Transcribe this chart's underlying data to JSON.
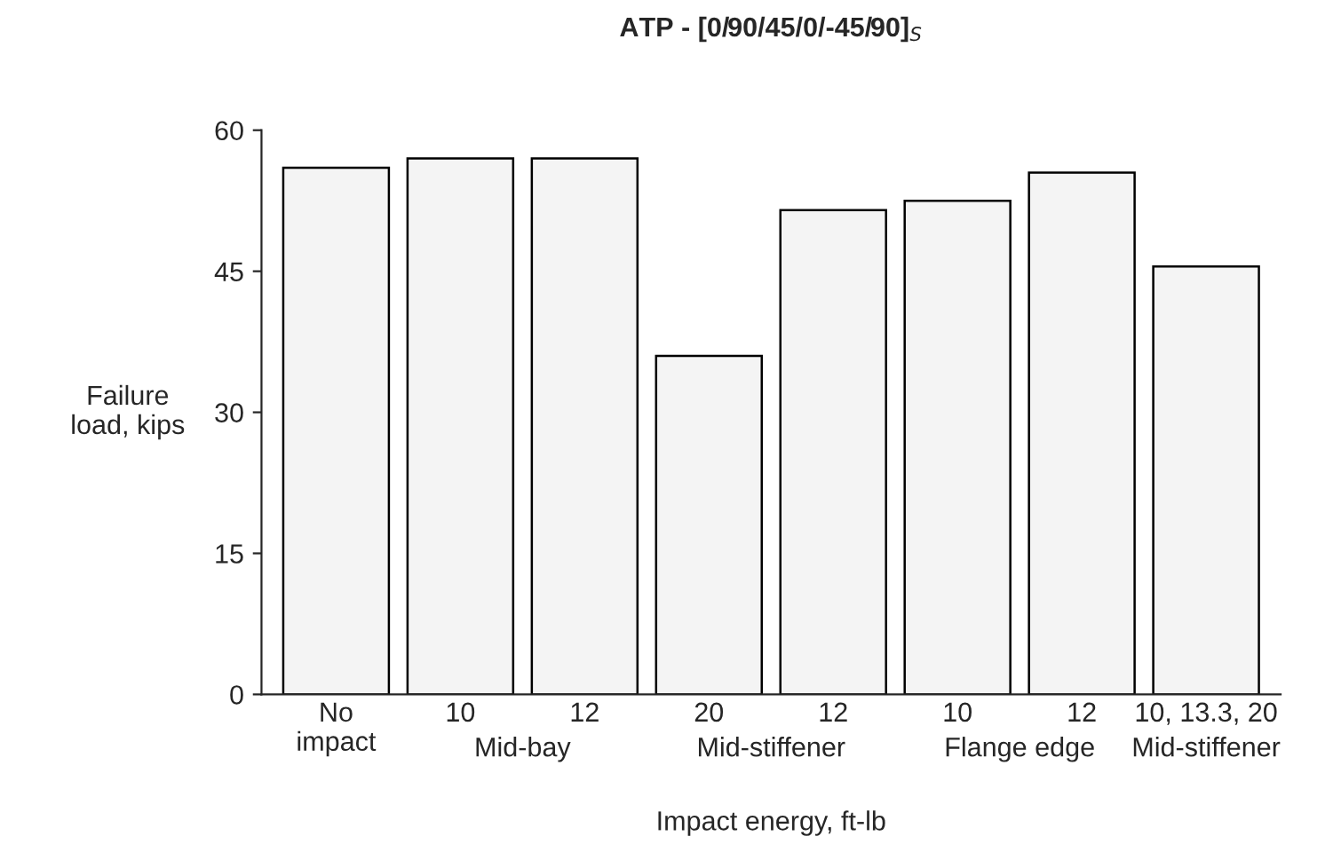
{
  "chart_data": {
    "type": "bar",
    "title": "ATP - [0/90/45/0/-45/90]$_{S}$",
    "xlabel": "Impact energy, ft-lb",
    "ylabel": "Failure\nload, kips",
    "categories": [
      "No\nimpact",
      "10",
      "12",
      "20",
      "12",
      "10",
      "12",
      "10, 13.3, 20"
    ],
    "values": [
      56,
      57,
      57,
      36,
      51.5,
      52.5,
      55.5,
      45.5
    ],
    "color": "#f4f4f4",
    "ylim": [
      0,
      60
    ],
    "yticks": [
      0,
      15,
      30,
      45,
      60
    ],
    "grid": false,
    "legend": false,
    "annotations": [
      "Mid-bay",
      "Mid-stiffener",
      "Flange edge",
      "Mid-stiffener"
    ]
  }
}
